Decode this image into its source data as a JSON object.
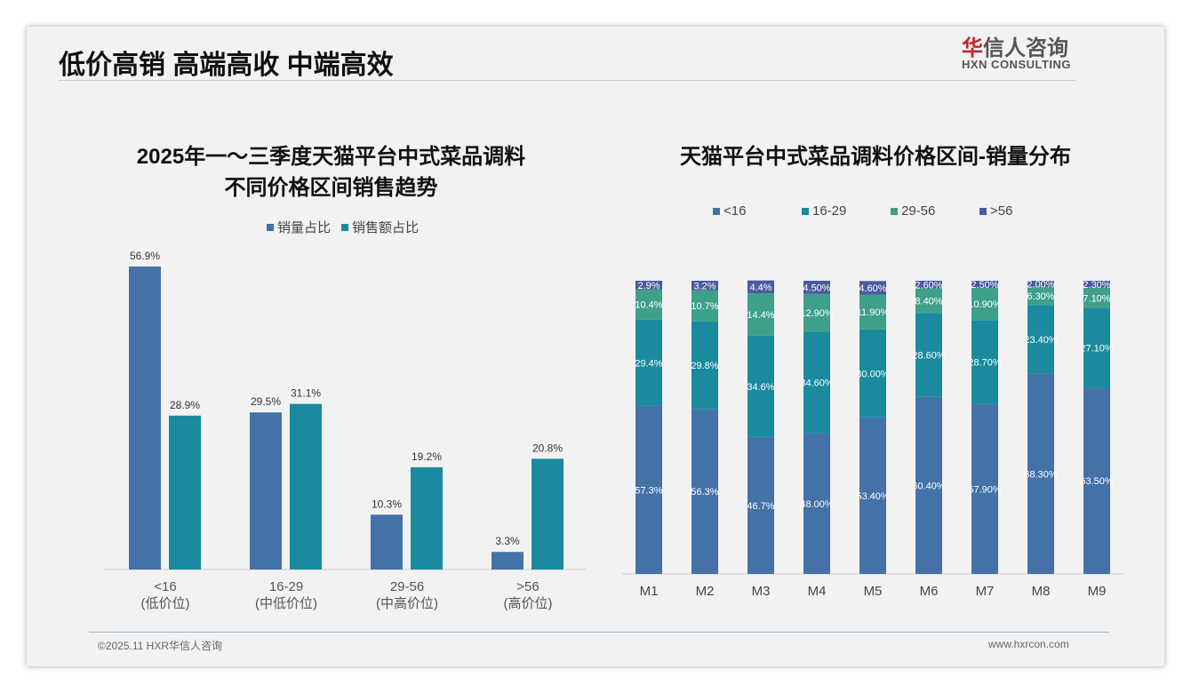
{
  "header": {
    "title": "低价高销 高端高收 中端高效",
    "logo_cn_red": "华",
    "logo_cn": "信人咨询",
    "logo_en": "HXN CONSULTING"
  },
  "footer": {
    "copyright": "©2025.11 HXR华信人咨询",
    "website": "www.hxrcon.com"
  },
  "colors": {
    "blue": "#4472a8",
    "teal": "#1a8a9e",
    "green": "#3ea08a",
    "purple": "#4a5a9e"
  },
  "chart_data": [
    {
      "type": "bar",
      "title_line1": "2025年一～三季度天猫平台中式菜品调料",
      "title_line2": "不同价格区间销售趋势",
      "categories": [
        "<16",
        "16-29",
        "29-56",
        ">56"
      ],
      "category_sublabels": [
        "(低价位)",
        "(中低价位)",
        "(中高价位)",
        "(高价位)"
      ],
      "series": [
        {
          "name": "销量占比",
          "values": [
            56.9,
            29.5,
            10.3,
            3.3
          ],
          "labels": [
            "56.9%",
            "29.5%",
            "10.3%",
            "3.3%"
          ]
        },
        {
          "name": "销售额占比",
          "values": [
            28.9,
            31.1,
            19.2,
            20.8
          ],
          "labels": [
            "28.9%",
            "31.1%",
            "19.2%",
            "20.8%"
          ]
        }
      ],
      "ylim": [
        0,
        60
      ],
      "legend": "top"
    },
    {
      "type": "bar",
      "stacked": true,
      "title": "天猫平台中式菜品调料价格区间-销量分布",
      "categories": [
        "M1",
        "M2",
        "M3",
        "M4",
        "M5",
        "M6",
        "M7",
        "M8",
        "M9"
      ],
      "series": [
        {
          "name": "<16",
          "values": [
            57.3,
            56.3,
            46.7,
            48.0,
            53.4,
            60.4,
            57.9,
            68.3,
            63.5
          ],
          "labels": [
            "57.3%",
            "56.3%",
            "46.7%",
            "48.00%",
            "53.40%",
            "60.40%",
            "57.90%",
            "68.30%",
            "63.50%"
          ]
        },
        {
          "name": "16-29",
          "values": [
            29.4,
            29.8,
            34.6,
            34.6,
            30.0,
            28.6,
            28.7,
            23.4,
            27.1
          ],
          "labels": [
            "29.4%",
            "29.8%",
            "34.6%",
            "34.60%",
            "30.00%",
            "28.60%",
            "28.70%",
            "23.40%",
            "27.10%"
          ]
        },
        {
          "name": "29-56",
          "values": [
            10.4,
            10.7,
            14.4,
            12.9,
            11.9,
            8.4,
            10.9,
            6.3,
            7.1
          ],
          "labels": [
            "10.4%",
            "10.7%",
            "14.4%",
            "12.90%",
            "11.90%",
            "8.40%",
            "10.90%",
            "6.30%",
            "7.10%"
          ]
        },
        {
          "name": ">56",
          "values": [
            2.9,
            3.2,
            4.4,
            4.5,
            4.6,
            2.6,
            2.5,
            2.0,
            2.3
          ],
          "labels": [
            "2.9%",
            "3.2%",
            "4.4%",
            "4.50%",
            "4.60%",
            "2.60%",
            "2.50%",
            "2.00%",
            "2.30%"
          ]
        }
      ],
      "ylim": [
        0,
        100
      ],
      "legend": "top"
    }
  ]
}
